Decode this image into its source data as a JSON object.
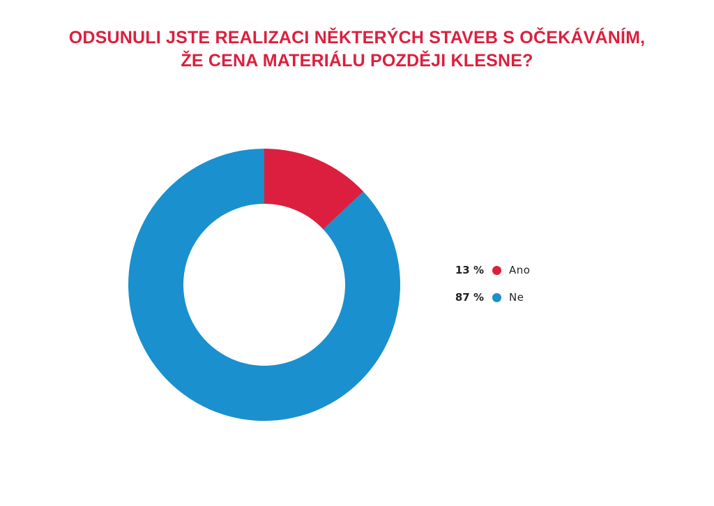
{
  "title": {
    "line1": "ODSUNULI JSTE REALIZACI NĚKTERÝCH STAVEB S OČEKÁVÁNÍM,",
    "line2": "ŽE CENA MATERIÁLU POZDĚJI KLESNE?"
  },
  "colors": {
    "title": "#dc1f3e",
    "ano": "#dc1f3e",
    "ne": "#1a90cf"
  },
  "chart_data": {
    "type": "pie",
    "style": "donut",
    "title": "ODSUNULI JSTE REALIZACI NĚKTERÝCH STAVEB S OČEKÁVÁNÍM, ŽE CENA MATERIÁLU POZDĚJI KLESNE?",
    "legend_position": "right",
    "slices": [
      {
        "label": "Ano",
        "value": 13,
        "value_label": "13 %",
        "color": "#dc1f3e"
      },
      {
        "label": "Ne",
        "value": 87,
        "value_label": "87 %",
        "color": "#1a90cf"
      }
    ]
  }
}
